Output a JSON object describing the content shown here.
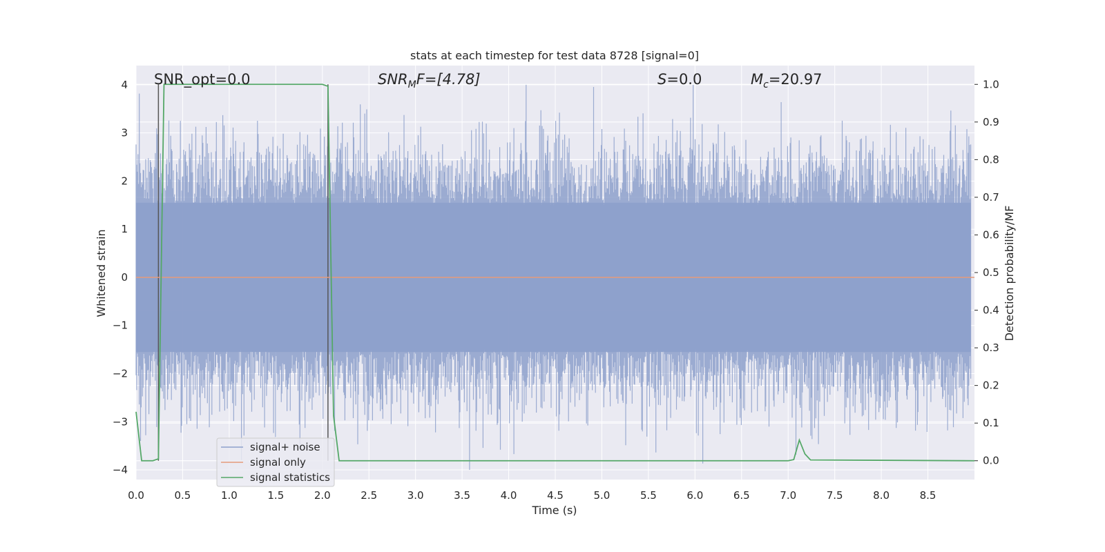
{
  "chart_data": {
    "type": "line",
    "title": "stats at each timestep for test data 8728 [signal=0]",
    "xlabel": "Time (s)",
    "ylabel_left": "Whitened strain",
    "ylabel_right": "Detection probability/MF",
    "xlim": [
      0.0,
      9.0
    ],
    "ylim_left": [
      -4.2,
      4.4
    ],
    "ylim_right": [
      -0.05,
      1.05
    ],
    "grid": true,
    "x_ticks": [
      "0.0",
      "0.5",
      "1.0",
      "1.5",
      "2.0",
      "2.5",
      "3.0",
      "3.5",
      "4.0",
      "4.5",
      "5.0",
      "5.5",
      "6.0",
      "6.5",
      "7.0",
      "7.5",
      "8.0",
      "8.5"
    ],
    "y_left_ticks": [
      "4",
      "3",
      "2",
      "1",
      "0",
      "−1",
      "−2",
      "−3",
      "−4"
    ],
    "y_right_ticks": [
      "1.0",
      "0.9",
      "0.8",
      "0.7",
      "0.6",
      "0.5",
      "0.4",
      "0.3",
      "0.2",
      "0.1",
      "0.0"
    ],
    "annotations": {
      "snr_opt": "SNR_opt=0.0",
      "snr_mf_main": "SNR",
      "snr_mf_sub": "M",
      "snr_mf_rest": "F=[4.78]",
      "s_main": "S",
      "s_rest": "=0.0",
      "mc_main": "M",
      "mc_sub": "c",
      "mc_rest": "=20.97"
    },
    "series": [
      {
        "name": "signal+ noise",
        "axis": "left",
        "color": "#8da0cb",
        "style": "noise",
        "approx_range": [
          -4.0,
          4.0
        ]
      },
      {
        "name": "signal only",
        "axis": "left",
        "color": "#e59a7a",
        "x": [
          0.0,
          9.0
        ],
        "y": [
          0.0,
          0.0
        ]
      },
      {
        "name": "signal statistics",
        "axis": "right",
        "color": "#55a868",
        "x": [
          0.0,
          0.06,
          0.18,
          0.24,
          0.3,
          2.0,
          2.06,
          2.12,
          2.18,
          2.24,
          7.0,
          7.06,
          7.12,
          7.18,
          7.24,
          9.0
        ],
        "y": [
          0.13,
          0.0,
          0.0,
          0.005,
          1.0,
          1.0,
          0.995,
          0.12,
          0.0,
          0.0,
          0.0,
          0.003,
          0.055,
          0.018,
          0.002,
          0.0
        ]
      }
    ],
    "vlines": [
      {
        "x": 0.24,
        "color": "#555555"
      },
      {
        "x": 2.06,
        "color": "#555555"
      }
    ],
    "legend": {
      "placement": "lower-left",
      "entries": [
        "signal+ noise",
        "signal only",
        "signal statistics"
      ]
    }
  }
}
